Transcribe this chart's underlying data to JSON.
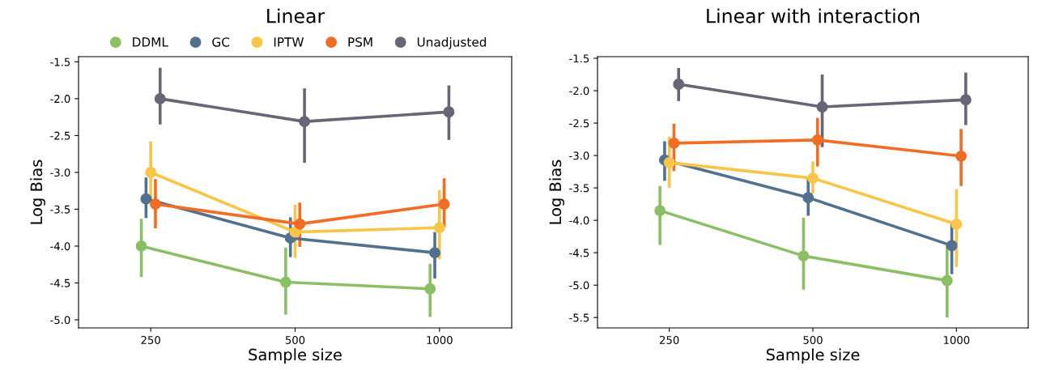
{
  "chart_data": [
    {
      "type": "line",
      "title": "Linear",
      "xlabel": "Sample size",
      "ylabel": "Log Bias",
      "categories": [
        "250",
        "500",
        "1000"
      ],
      "ylim": [
        -5.11,
        -1.43
      ],
      "yticks": [
        {
          "value": -5.0,
          "label": "-5.0"
        },
        {
          "value": -4.5,
          "label": "-4.5"
        },
        {
          "value": -4.0,
          "label": "-4.0"
        },
        {
          "value": -3.5,
          "label": "-3.5"
        },
        {
          "value": -3.0,
          "label": "-3.0"
        },
        {
          "value": -2.5,
          "label": "-2.5"
        },
        {
          "value": -2.0,
          "label": "-2.0"
        },
        {
          "value": -1.5,
          "label": "-1.5"
        }
      ],
      "marker": "circle",
      "grid": false,
      "legend": "top",
      "series": [
        {
          "name": "DDML",
          "color": "#8bbf65",
          "values": [
            -4.0,
            -4.49,
            -4.58
          ],
          "errors": [
            [
              -4.42,
              -3.63
            ],
            [
              -4.93,
              -4.02
            ],
            [
              -4.96,
              -4.24
            ]
          ]
        },
        {
          "name": "GC",
          "color": "#52718f",
          "values": [
            -3.36,
            -3.89,
            -4.09
          ],
          "errors": [
            [
              -3.62,
              -3.07
            ],
            [
              -4.15,
              -3.61
            ],
            [
              -4.44,
              -3.81
            ]
          ]
        },
        {
          "name": "IPTW",
          "color": "#f7c548",
          "values": [
            -3.0,
            -3.81,
            -3.75
          ],
          "errors": [
            [
              -3.4,
              -2.58
            ],
            [
              -4.16,
              -3.44
            ],
            [
              -4.18,
              -3.24
            ]
          ]
        },
        {
          "name": "PSM",
          "color": "#f06d25",
          "values": [
            -3.43,
            -3.7,
            -3.43
          ],
          "errors": [
            [
              -3.76,
              -3.09
            ],
            [
              -4.01,
              -3.41
            ],
            [
              -3.74,
              -3.08
            ]
          ]
        },
        {
          "name": "Unadjusted",
          "color": "#6a6575",
          "values": [
            -2.0,
            -2.31,
            -2.18
          ],
          "errors": [
            [
              -2.35,
              -1.58
            ],
            [
              -2.87,
              -1.86
            ],
            [
              -2.56,
              -1.82
            ]
          ]
        }
      ]
    },
    {
      "type": "line",
      "title": "Linear with interaction",
      "xlabel": "Sample size",
      "ylabel": "Log Bias",
      "categories": [
        "250",
        "500",
        "1000"
      ],
      "ylim": [
        -5.66,
        -1.475
      ],
      "yticks": [
        {
          "value": -5.5,
          "label": "-5.5"
        },
        {
          "value": -5.0,
          "label": "-5.0"
        },
        {
          "value": -4.5,
          "label": "-4.5"
        },
        {
          "value": -4.0,
          "label": "-4.0"
        },
        {
          "value": -3.5,
          "label": "-3.5"
        },
        {
          "value": -3.0,
          "label": "-3.0"
        },
        {
          "value": -2.5,
          "label": "-2.5"
        },
        {
          "value": -2.0,
          "label": "-2.0"
        },
        {
          "value": -1.5,
          "label": "-1.5"
        }
      ],
      "marker": "circle",
      "grid": false,
      "legend": false,
      "series": [
        {
          "color": "#8bbf65",
          "values": [
            -3.85,
            -4.55,
            -4.93
          ],
          "errors": [
            [
              -4.38,
              -3.47
            ],
            [
              -5.07,
              -3.96
            ],
            [
              -5.5,
              -4.38
            ]
          ]
        },
        {
          "color": "#52718f",
          "values": [
            -3.07,
            -3.65,
            -4.39
          ],
          "errors": [
            [
              -3.39,
              -2.78
            ],
            [
              -3.93,
              -3.35
            ],
            [
              -4.83,
              -4.05
            ]
          ]
        },
        {
          "color": "#f7c548",
          "values": [
            -3.11,
            -3.35,
            -4.06
          ],
          "errors": [
            [
              -3.5,
              -2.71
            ],
            [
              -3.59,
              -3.09
            ],
            [
              -4.72,
              -3.52
            ]
          ]
        },
        {
          "color": "#f06d25",
          "values": [
            -2.81,
            -2.76,
            -3.01
          ],
          "errors": [
            [
              -3.24,
              -2.51
            ],
            [
              -3.17,
              -2.42
            ],
            [
              -3.47,
              -2.59
            ]
          ]
        },
        {
          "color": "#6a6575",
          "values": [
            -1.9,
            -2.25,
            -2.14
          ],
          "errors": [
            [
              -2.16,
              -1.65
            ],
            [
              -2.87,
              -1.75
            ],
            [
              -2.53,
              -1.72
            ]
          ]
        }
      ]
    }
  ]
}
